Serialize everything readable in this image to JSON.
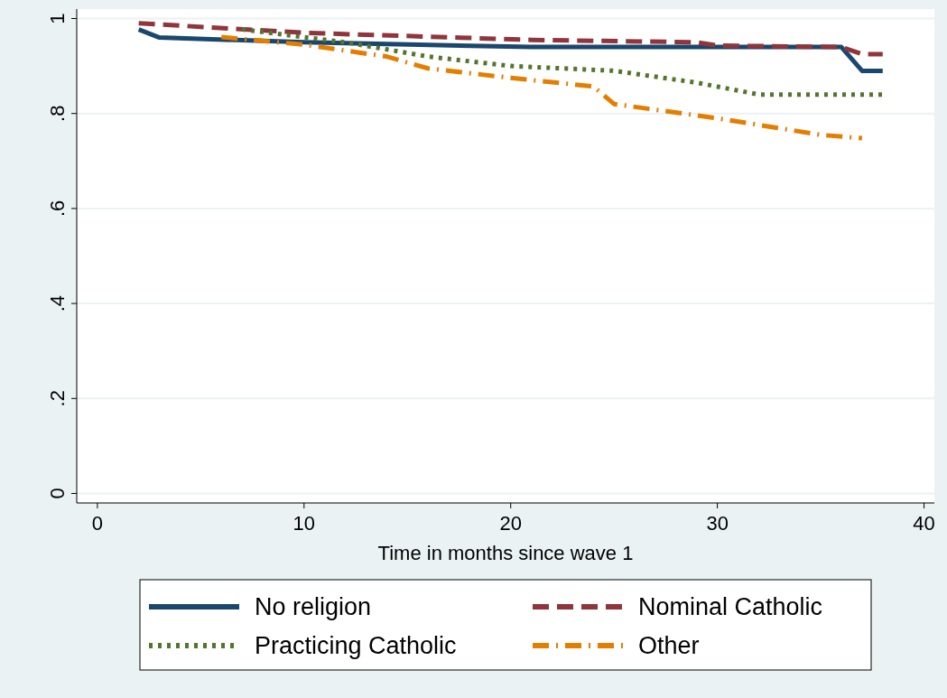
{
  "chart_data": {
    "type": "line",
    "xlabel": "Time in months since wave 1",
    "xlim": [
      -1,
      40.5
    ],
    "xticks": [
      0,
      10,
      20,
      30,
      40
    ],
    "ylim": [
      -0.02,
      1.02
    ],
    "yticks": [
      {
        "value": 0,
        "label": "0"
      },
      {
        "value": 0.2,
        "label": ".2"
      },
      {
        "value": 0.4,
        "label": ".4"
      },
      {
        "value": 0.6,
        "label": ".6"
      },
      {
        "value": 0.8,
        "label": ".8"
      },
      {
        "value": 1,
        "label": "1"
      }
    ],
    "grid": "y",
    "legend": "bottom",
    "marker": "none",
    "series": [
      {
        "name": "No religion",
        "color": "#1a476f",
        "line_style": "solid",
        "x": [
          2,
          3,
          10,
          21,
          36,
          37,
          38
        ],
        "values": [
          0.977,
          0.96,
          0.95,
          0.94,
          0.94,
          0.89,
          0.89
        ]
      },
      {
        "name": "Nominal Catholic",
        "color": "#90353b",
        "line_style": "dashed",
        "x": [
          2,
          10,
          21,
          29,
          30,
          36,
          37,
          38
        ],
        "values": [
          0.99,
          0.97,
          0.955,
          0.95,
          0.943,
          0.94,
          0.925,
          0.925
        ]
      },
      {
        "name": "Practicing Catholic",
        "color": "#55752f",
        "line_style": "dotted",
        "x": [
          7,
          12,
          16,
          20,
          25,
          29,
          32,
          38
        ],
        "values": [
          0.977,
          0.95,
          0.92,
          0.9,
          0.89,
          0.865,
          0.84,
          0.84
        ]
      },
      {
        "name": "Other",
        "color": "#e37e00",
        "line_style": "dashdot",
        "x": [
          6,
          10,
          14,
          16,
          20,
          24,
          25,
          30,
          35,
          37
        ],
        "values": [
          0.961,
          0.945,
          0.92,
          0.895,
          0.875,
          0.857,
          0.82,
          0.79,
          0.755,
          0.748
        ]
      }
    ]
  }
}
